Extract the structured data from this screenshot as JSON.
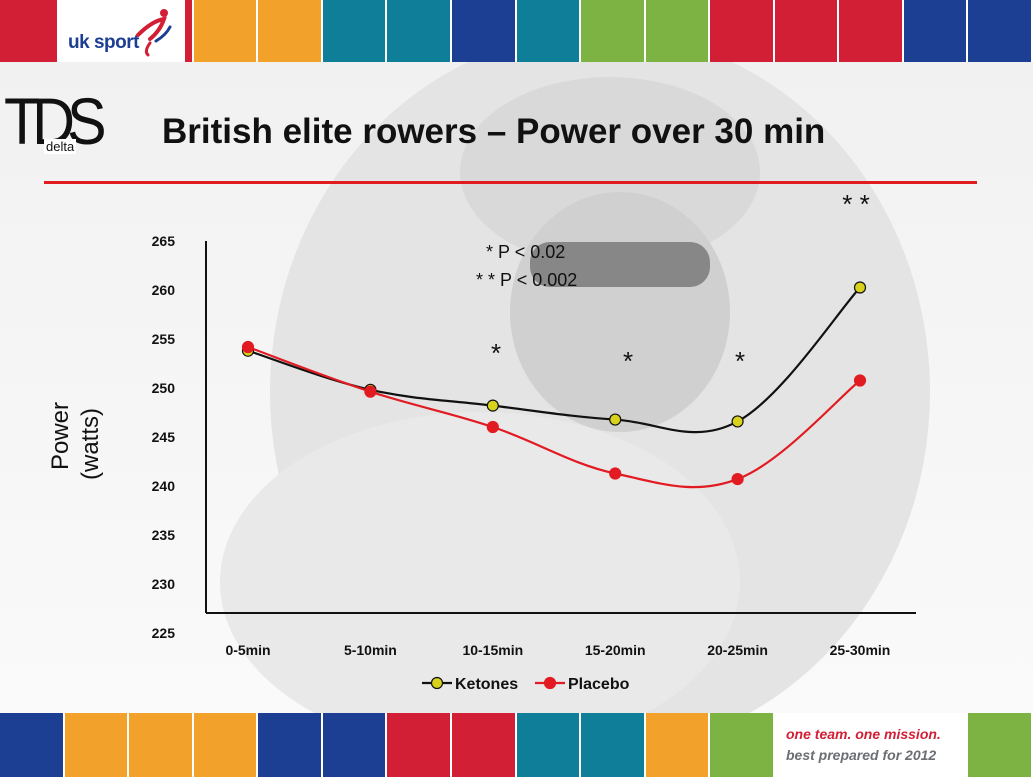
{
  "branding": {
    "logo_text": "uk sport",
    "tds_logo": "TDS",
    "tds_sub": "delta",
    "slogan_line1": "one team. one mission.",
    "slogan_line2": "best prepared for 2012"
  },
  "colors": {
    "red": "#d21f35",
    "orange": "#f2a12a",
    "teal": "#0f7f99",
    "navy": "#1c3f94",
    "green": "#7cb342",
    "ketones_marker": "#d9d21c",
    "placebo_line": "#e21b22"
  },
  "slide": {
    "title": "British elite rowers – Power over 30 min"
  },
  "chart_data": {
    "type": "line",
    "title": "British elite rowers – Power over 30 min",
    "ylabel_line1": "Power",
    "ylabel_line2": "(watts)",
    "xlabel": "",
    "ylim": [
      225,
      265
    ],
    "yticks": [
      265,
      260,
      255,
      250,
      245,
      240,
      235,
      230,
      225
    ],
    "categories": [
      "0-5min",
      "5-10min",
      "10-15min",
      "15-20min",
      "20-25min",
      "25-30min"
    ],
    "series": [
      {
        "name": "Ketones",
        "values": [
          253.2,
          249.0,
          247.3,
          245.8,
          245.6,
          260.0
        ],
        "color": "#111111",
        "marker": "#d9d21c"
      },
      {
        "name": "Placebo",
        "values": [
          253.6,
          248.8,
          245.0,
          240.0,
          239.4,
          250.0
        ],
        "color": "#e21b22",
        "marker": "#e21b22"
      }
    ],
    "annotations": {
      "sig1": "* P < 0.02",
      "sig2": "* * P < 0.002"
    },
    "significance": [
      "",
      "",
      "*",
      "*",
      "*",
      "**"
    ],
    "grid": false,
    "legend_position": "bottom"
  }
}
